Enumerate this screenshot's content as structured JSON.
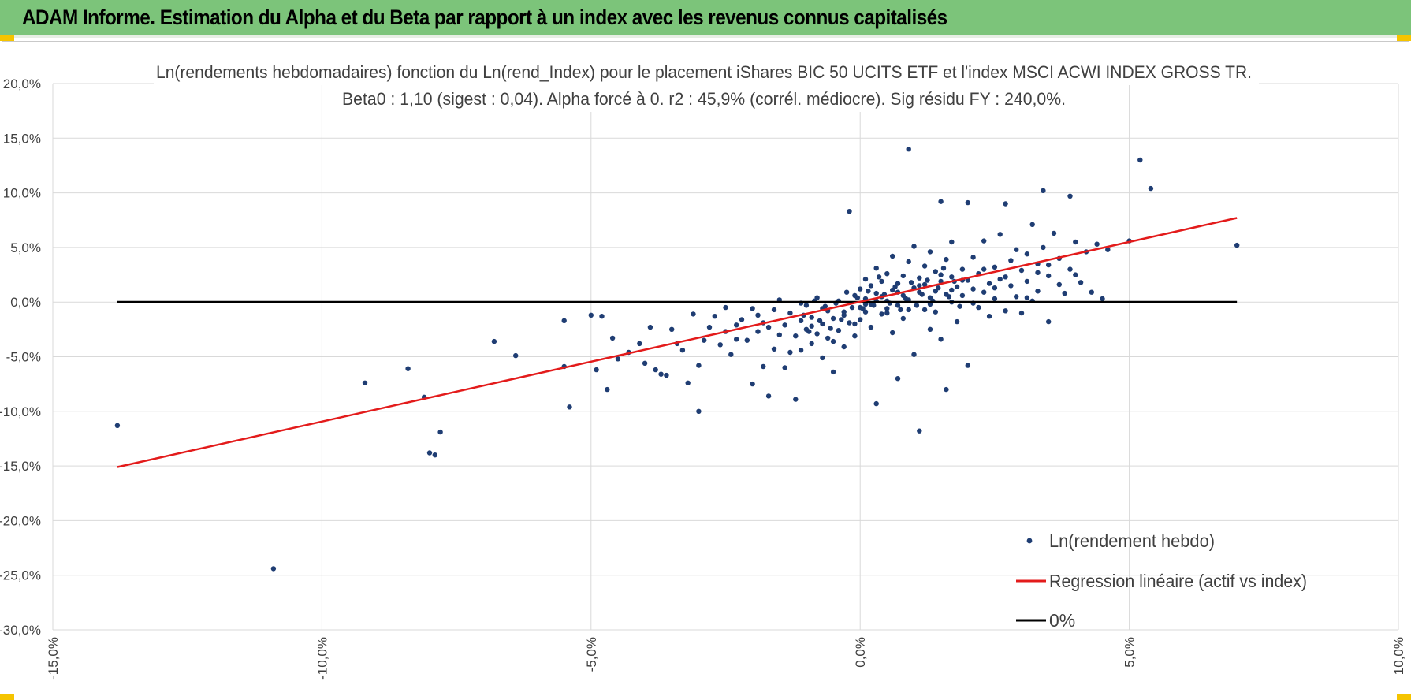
{
  "banner": {
    "title": "ADAM Informe. Estimation du Alpha et du Beta par rapport à un index avec les revenus connus capitalisés"
  },
  "colors": {
    "banner": "#7cc47a",
    "points": "#1f3d73",
    "regression": "#e31b1b",
    "zero_line": "#000000",
    "grid": "#d9d9d9"
  },
  "chart_data": {
    "type": "scatter",
    "title_line1": "Ln(rendements hebdomadaires) fonction du Ln(rend_Index) pour le placement iShares BIC 50 UCITS ETF  et l'index MSCI ACWI INDEX GROSS TR.",
    "title_line2": "Beta0 : 1,10 (sigest : 0,04).  Alpha forcé à 0. r2 : 45,9% (corrél. médiocre). Sig résidu FY : 240,0%.",
    "xlim": [
      -15,
      10
    ],
    "ylim": [
      -30,
      20
    ],
    "x_ticks": [
      -15,
      -10,
      -5,
      0,
      5,
      10
    ],
    "y_ticks": [
      20,
      15,
      10,
      5,
      0,
      -5,
      -10,
      -15,
      -20,
      -25,
      -30
    ],
    "x_tick_labels": [
      "-15,0%",
      "-10,0%",
      "-5,0%",
      "0,0%",
      "5,0%",
      "10,0%"
    ],
    "y_tick_labels": [
      "20,0%",
      "15,0%",
      "10,0%",
      "5,0%",
      "0,0%",
      "-5,0%",
      "-10,0%",
      "-15,0%",
      "-20,0%",
      "-25,0%",
      "-30,0%"
    ],
    "grid": true,
    "legend": {
      "position": "bottom-right",
      "entries": [
        {
          "label": "Ln(rendement hebdo)",
          "kind": "marker"
        },
        {
          "label": "Regression linéaire (actif vs index)",
          "kind": "line",
          "color": "#e31b1b"
        },
        {
          "label": "0%",
          "kind": "line",
          "color": "#000000"
        }
      ]
    },
    "regression": {
      "beta": 1.1,
      "alpha": 0,
      "x_range": [
        -13.8,
        7.0
      ],
      "y_range": [
        -15.1,
        7.7
      ]
    },
    "zero_line": {
      "x_range": [
        -13.8,
        7.0
      ],
      "y": 0
    },
    "points": [
      [
        -13.8,
        -11.3
      ],
      [
        -10.9,
        -24.4
      ],
      [
        -9.2,
        -7.4
      ],
      [
        -8.4,
        -6.1
      ],
      [
        -8.1,
        -8.7
      ],
      [
        -8.0,
        -13.8
      ],
      [
        -7.9,
        -14.0
      ],
      [
        -7.8,
        -11.9
      ],
      [
        -6.8,
        -3.6
      ],
      [
        -6.4,
        -4.9
      ],
      [
        -5.5,
        -1.7
      ],
      [
        -5.5,
        -5.9
      ],
      [
        -5.4,
        -9.6
      ],
      [
        -5.0,
        -1.2
      ],
      [
        -4.9,
        -6.2
      ],
      [
        -4.8,
        -1.3
      ],
      [
        -4.7,
        -8.0
      ],
      [
        -4.6,
        -3.3
      ],
      [
        -4.5,
        -5.2
      ],
      [
        -4.3,
        -4.6
      ],
      [
        -4.1,
        -3.8
      ],
      [
        -4.0,
        -5.6
      ],
      [
        -3.9,
        -2.3
      ],
      [
        -3.8,
        -6.2
      ],
      [
        -3.7,
        -6.6
      ],
      [
        -3.6,
        -6.7
      ],
      [
        -3.5,
        -2.5
      ],
      [
        -3.4,
        -3.8
      ],
      [
        -3.3,
        -4.4
      ],
      [
        -3.2,
        -7.4
      ],
      [
        -3.1,
        -1.1
      ],
      [
        -3.0,
        -10.0
      ],
      [
        -3.0,
        -5.8
      ],
      [
        -2.9,
        -3.5
      ],
      [
        -2.8,
        -2.3
      ],
      [
        -2.7,
        -1.3
      ],
      [
        -2.6,
        -3.9
      ],
      [
        -2.5,
        -2.7
      ],
      [
        -2.4,
        -4.8
      ],
      [
        -2.3,
        -2.1
      ],
      [
        -2.2,
        -1.6
      ],
      [
        -2.1,
        -3.5
      ],
      [
        -2.0,
        -0.6
      ],
      [
        -2.0,
        -7.5
      ],
      [
        -1.9,
        -2.7
      ],
      [
        -1.8,
        -5.9
      ],
      [
        -1.8,
        -1.9
      ],
      [
        -1.7,
        -8.6
      ],
      [
        -1.6,
        -4.3
      ],
      [
        -1.6,
        -0.7
      ],
      [
        -1.5,
        -3.0
      ],
      [
        -1.4,
        -2.1
      ],
      [
        -1.4,
        -6.0
      ],
      [
        -1.3,
        -1.0
      ],
      [
        -1.2,
        -3.1
      ],
      [
        -1.2,
        -8.9
      ],
      [
        -1.1,
        -1.7
      ],
      [
        -1.1,
        -4.4
      ],
      [
        -1.0,
        -2.5
      ],
      [
        -1.0,
        -0.3
      ],
      [
        -0.9,
        -3.8
      ],
      [
        -0.9,
        -1.4
      ],
      [
        -0.8,
        -2.9
      ],
      [
        -0.8,
        0.4
      ],
      [
        -0.7,
        -5.1
      ],
      [
        -0.7,
        -2.0
      ],
      [
        -0.6,
        -0.8
      ],
      [
        -0.6,
        -3.3
      ],
      [
        -0.5,
        -6.4
      ],
      [
        -0.5,
        -1.5
      ],
      [
        -0.4,
        0.1
      ],
      [
        -0.4,
        -2.6
      ],
      [
        -0.3,
        -4.1
      ],
      [
        -0.3,
        -0.9
      ],
      [
        -0.2,
        8.3
      ],
      [
        -0.2,
        -1.9
      ],
      [
        -0.1,
        0.6
      ],
      [
        -0.1,
        -3.1
      ],
      [
        0.0,
        -0.5
      ],
      [
        0.0,
        1.2
      ],
      [
        0.0,
        -1.6
      ],
      [
        0.1,
        0.3
      ],
      [
        0.1,
        2.1
      ],
      [
        0.1,
        -0.9
      ],
      [
        0.2,
        -2.3
      ],
      [
        0.2,
        1.5
      ],
      [
        0.2,
        -0.2
      ],
      [
        0.3,
        0.8
      ],
      [
        0.3,
        -9.3
      ],
      [
        0.3,
        3.1
      ],
      [
        0.4,
        -1.1
      ],
      [
        0.4,
        0.5
      ],
      [
        0.4,
        1.9
      ],
      [
        0.5,
        -0.6
      ],
      [
        0.5,
        2.6
      ],
      [
        0.5,
        0.1
      ],
      [
        0.6,
        -2.8
      ],
      [
        0.6,
        1.1
      ],
      [
        0.6,
        4.2
      ],
      [
        0.7,
        -0.3
      ],
      [
        0.7,
        1.7
      ],
      [
        0.7,
        -7.0
      ],
      [
        0.8,
        0.6
      ],
      [
        0.8,
        2.4
      ],
      [
        0.8,
        -1.5
      ],
      [
        0.9,
        14.0
      ],
      [
        0.9,
        3.7
      ],
      [
        0.9,
        0.2
      ],
      [
        1.0,
        1.3
      ],
      [
        1.0,
        -4.8
      ],
      [
        1.0,
        5.1
      ],
      [
        1.1,
        0.9
      ],
      [
        1.1,
        2.2
      ],
      [
        1.1,
        -11.8
      ],
      [
        1.2,
        -0.7
      ],
      [
        1.2,
        1.6
      ],
      [
        1.2,
        3.3
      ],
      [
        1.3,
        0.4
      ],
      [
        1.3,
        -2.5
      ],
      [
        1.3,
        4.6
      ],
      [
        1.4,
        1.0
      ],
      [
        1.4,
        2.8
      ],
      [
        1.4,
        -0.9
      ],
      [
        1.5,
        9.2
      ],
      [
        1.5,
        1.9
      ],
      [
        1.5,
        -3.4
      ],
      [
        1.6,
        0.7
      ],
      [
        1.6,
        3.9
      ],
      [
        1.6,
        -8.0
      ],
      [
        1.7,
        2.3
      ],
      [
        1.7,
        0.0
      ],
      [
        1.7,
        5.5
      ],
      [
        1.8,
        1.4
      ],
      [
        1.8,
        -1.8
      ],
      [
        1.9,
        3.0
      ],
      [
        1.9,
        0.6
      ],
      [
        2.0,
        2.0
      ],
      [
        2.0,
        -5.8
      ],
      [
        2.0,
        9.1
      ],
      [
        2.1,
        1.2
      ],
      [
        2.1,
        4.1
      ],
      [
        2.2,
        -0.5
      ],
      [
        2.2,
        2.6
      ],
      [
        2.3,
        0.9
      ],
      [
        2.3,
        5.6
      ],
      [
        2.4,
        1.7
      ],
      [
        2.4,
        -1.3
      ],
      [
        2.5,
        3.2
      ],
      [
        2.5,
        0.3
      ],
      [
        2.6,
        2.1
      ],
      [
        2.6,
        6.2
      ],
      [
        2.7,
        -0.8
      ],
      [
        2.7,
        9.0
      ],
      [
        2.8,
        1.5
      ],
      [
        2.8,
        3.8
      ],
      [
        2.9,
        0.5
      ],
      [
        3.0,
        2.9
      ],
      [
        3.0,
        -1.0
      ],
      [
        3.1,
        4.4
      ],
      [
        3.1,
        1.9
      ],
      [
        3.2,
        7.1
      ],
      [
        3.2,
        0.1
      ],
      [
        3.3,
        3.5
      ],
      [
        3.3,
        1.0
      ],
      [
        3.4,
        10.2
      ],
      [
        3.4,
        5.0
      ],
      [
        3.5,
        -1.8
      ],
      [
        3.5,
        2.4
      ],
      [
        3.6,
        6.3
      ],
      [
        3.7,
        1.6
      ],
      [
        3.7,
        4.0
      ],
      [
        3.8,
        0.8
      ],
      [
        3.9,
        9.7
      ],
      [
        3.9,
        3.0
      ],
      [
        4.0,
        5.5
      ],
      [
        4.0,
        2.5
      ],
      [
        4.1,
        1.8
      ],
      [
        4.2,
        4.6
      ],
      [
        4.3,
        0.9
      ],
      [
        4.4,
        5.3
      ],
      [
        4.5,
        0.3
      ],
      [
        4.6,
        4.8
      ],
      [
        5.0,
        5.6
      ],
      [
        5.2,
        13.0
      ],
      [
        5.4,
        10.4
      ],
      [
        7.0,
        5.2
      ],
      [
        -2.5,
        -0.5
      ],
      [
        -2.3,
        -3.4
      ],
      [
        -1.9,
        -1.2
      ],
      [
        -1.7,
        -2.3
      ],
      [
        -1.5,
        0.2
      ],
      [
        -1.3,
        -4.6
      ],
      [
        -1.1,
        -0.1
      ],
      [
        -0.9,
        -2.2
      ],
      [
        -0.7,
        -0.6
      ],
      [
        -0.5,
        -3.6
      ],
      [
        -0.3,
        -1.2
      ],
      [
        -0.1,
        -2.0
      ],
      [
        0.1,
        -0.2
      ],
      [
        0.3,
        0.1
      ],
      [
        0.5,
        -1.0
      ],
      [
        0.7,
        0.9
      ],
      [
        0.9,
        -0.7
      ],
      [
        1.1,
        1.5
      ],
      [
        1.3,
        -0.2
      ],
      [
        1.5,
        2.5
      ],
      [
        1.7,
        1.1
      ],
      [
        1.9,
        2.0
      ],
      [
        2.1,
        -0.1
      ],
      [
        2.3,
        3.0
      ],
      [
        2.5,
        1.3
      ],
      [
        2.7,
        2.3
      ],
      [
        2.9,
        4.8
      ],
      [
        3.1,
        0.4
      ],
      [
        3.3,
        2.7
      ],
      [
        3.5,
        3.4
      ],
      [
        -0.05,
        0.4
      ],
      [
        0.05,
        -0.6
      ],
      [
        0.15,
        1.0
      ],
      [
        0.25,
        -0.3
      ],
      [
        0.35,
        2.3
      ],
      [
        0.45,
        0.7
      ],
      [
        0.55,
        -0.1
      ],
      [
        0.65,
        1.4
      ],
      [
        0.75,
        -0.7
      ],
      [
        0.85,
        0.3
      ],
      [
        0.95,
        1.8
      ],
      [
        1.05,
        -0.3
      ],
      [
        1.15,
        0.7
      ],
      [
        1.25,
        2.0
      ],
      [
        1.35,
        0.1
      ],
      [
        1.45,
        1.3
      ],
      [
        1.55,
        3.1
      ],
      [
        1.65,
        0.5
      ],
      [
        1.75,
        1.9
      ],
      [
        1.85,
        -0.4
      ],
      [
        -0.15,
        -0.5
      ],
      [
        -0.25,
        0.9
      ],
      [
        -0.35,
        -1.6
      ],
      [
        -0.45,
        -0.1
      ],
      [
        -0.55,
        -2.4
      ],
      [
        -0.65,
        -0.4
      ],
      [
        -0.75,
        -1.7
      ],
      [
        -0.85,
        0.1
      ],
      [
        -0.95,
        -2.7
      ],
      [
        -1.05,
        -1.2
      ]
    ]
  }
}
